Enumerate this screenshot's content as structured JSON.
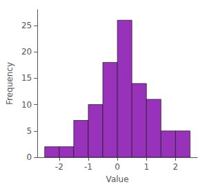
{
  "chart_data": {
    "type": "histogram",
    "bins": [
      -2.5,
      -2.0,
      -1.5,
      -1.0,
      -0.5,
      0.0,
      0.5,
      1.0,
      1.5,
      2.0,
      2.5
    ],
    "values": [
      2,
      2,
      7,
      10,
      18,
      26,
      14,
      11,
      5,
      5
    ],
    "color": "#9932bb",
    "xlabel": "Value",
    "ylabel": "Frequency",
    "xlim": [
      -2.75,
      2.75
    ],
    "ylim": [
      0,
      28
    ],
    "xticks": [
      -2,
      -1,
      0,
      1,
      2
    ],
    "yticks": [
      0,
      5,
      10,
      15,
      20,
      25
    ],
    "grid": false
  }
}
